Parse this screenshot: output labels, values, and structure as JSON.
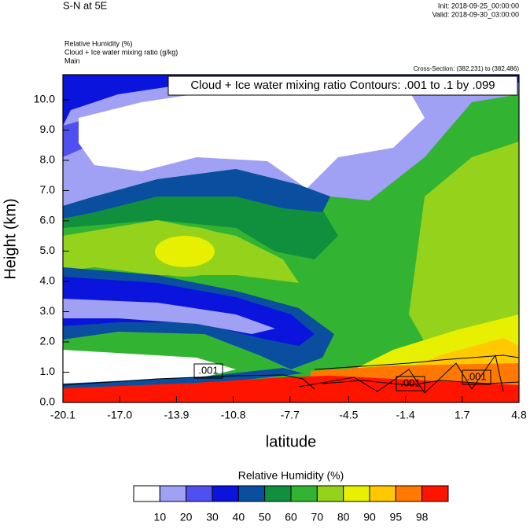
{
  "chart_data": {
    "type": "contour",
    "title": "S-N at 5E",
    "init": "Init: 2018-09-25_00:00:00",
    "valid": "Valid: 2018-09-30_03:00:00",
    "fields": [
      "Relative Humidity   (%)",
      "Cloud + Ice water mixing ratio   (g/kg)",
      "Main"
    ],
    "cross_section": "Cross-Section: (382,231) to (382,486)",
    "contour_note": "Cloud + Ice water mixing ratio Contours: .001 to .1 by .099",
    "contour_labels": [
      ".001",
      ".001",
      ".001"
    ],
    "xlabel": "latitude",
    "ylabel": "Height (km)",
    "xlim": [
      -20.1,
      4.8
    ],
    "ylim": [
      0,
      10.83
    ],
    "xticks": [
      -20.1,
      {
        "value": -17,
        "label": "-17.0"
      },
      -13.9,
      -10.8,
      -7.7,
      -4.5,
      -1.4,
      1.7,
      4.8
    ],
    "yticks": [
      {
        "value": 0,
        "label": "0.0"
      },
      {
        "value": 1,
        "label": "1.0"
      },
      {
        "value": 2,
        "label": "2.0"
      },
      {
        "value": 3,
        "label": "3.0"
      },
      {
        "value": 4,
        "label": "4.0"
      },
      {
        "value": 5,
        "label": "5.0"
      },
      {
        "value": 6,
        "label": "6.0"
      },
      {
        "value": 7,
        "label": "7.0"
      },
      {
        "value": 8,
        "label": "8.0"
      },
      {
        "value": 9,
        "label": "9.0"
      },
      {
        "value": 10,
        "label": "10.0"
      }
    ],
    "colorbar": {
      "title": "Relative Humidity  (%)",
      "levels": [
        10,
        20,
        30,
        40,
        50,
        60,
        70,
        80,
        90,
        95,
        98
      ],
      "colors": [
        "#ffffff",
        "#a0a0f5",
        "#5050f0",
        "#0a14dc",
        "#0a4ea0",
        "#10903c",
        "#32b432",
        "#94d21c",
        "#e6f000",
        "#ffc800",
        "#ff7800",
        "#ff1400"
      ]
    }
  }
}
